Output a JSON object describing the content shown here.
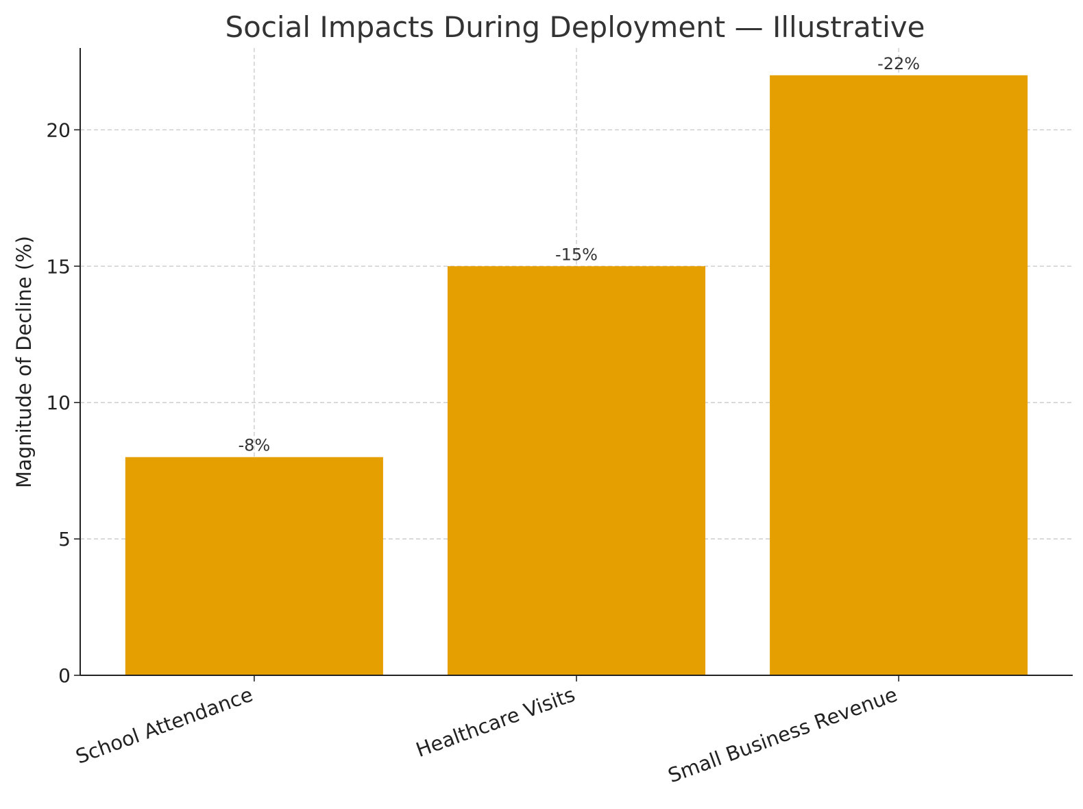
{
  "chart_data": {
    "type": "bar",
    "title": "Social Impacts During Deployment — Illustrative",
    "xlabel": "",
    "ylabel": "Magnitude of Decline (%)",
    "categories": [
      "School Attendance",
      "Healthcare Visits",
      "Small Business Revenue"
    ],
    "values": [
      8,
      15,
      22
    ],
    "data_labels": [
      "-8%",
      "-15%",
      "-22%"
    ],
    "ylim": [
      0,
      23
    ],
    "yticks": [
      0,
      5,
      10,
      15,
      20
    ],
    "grid": true,
    "bar_color": "#E69F00"
  }
}
